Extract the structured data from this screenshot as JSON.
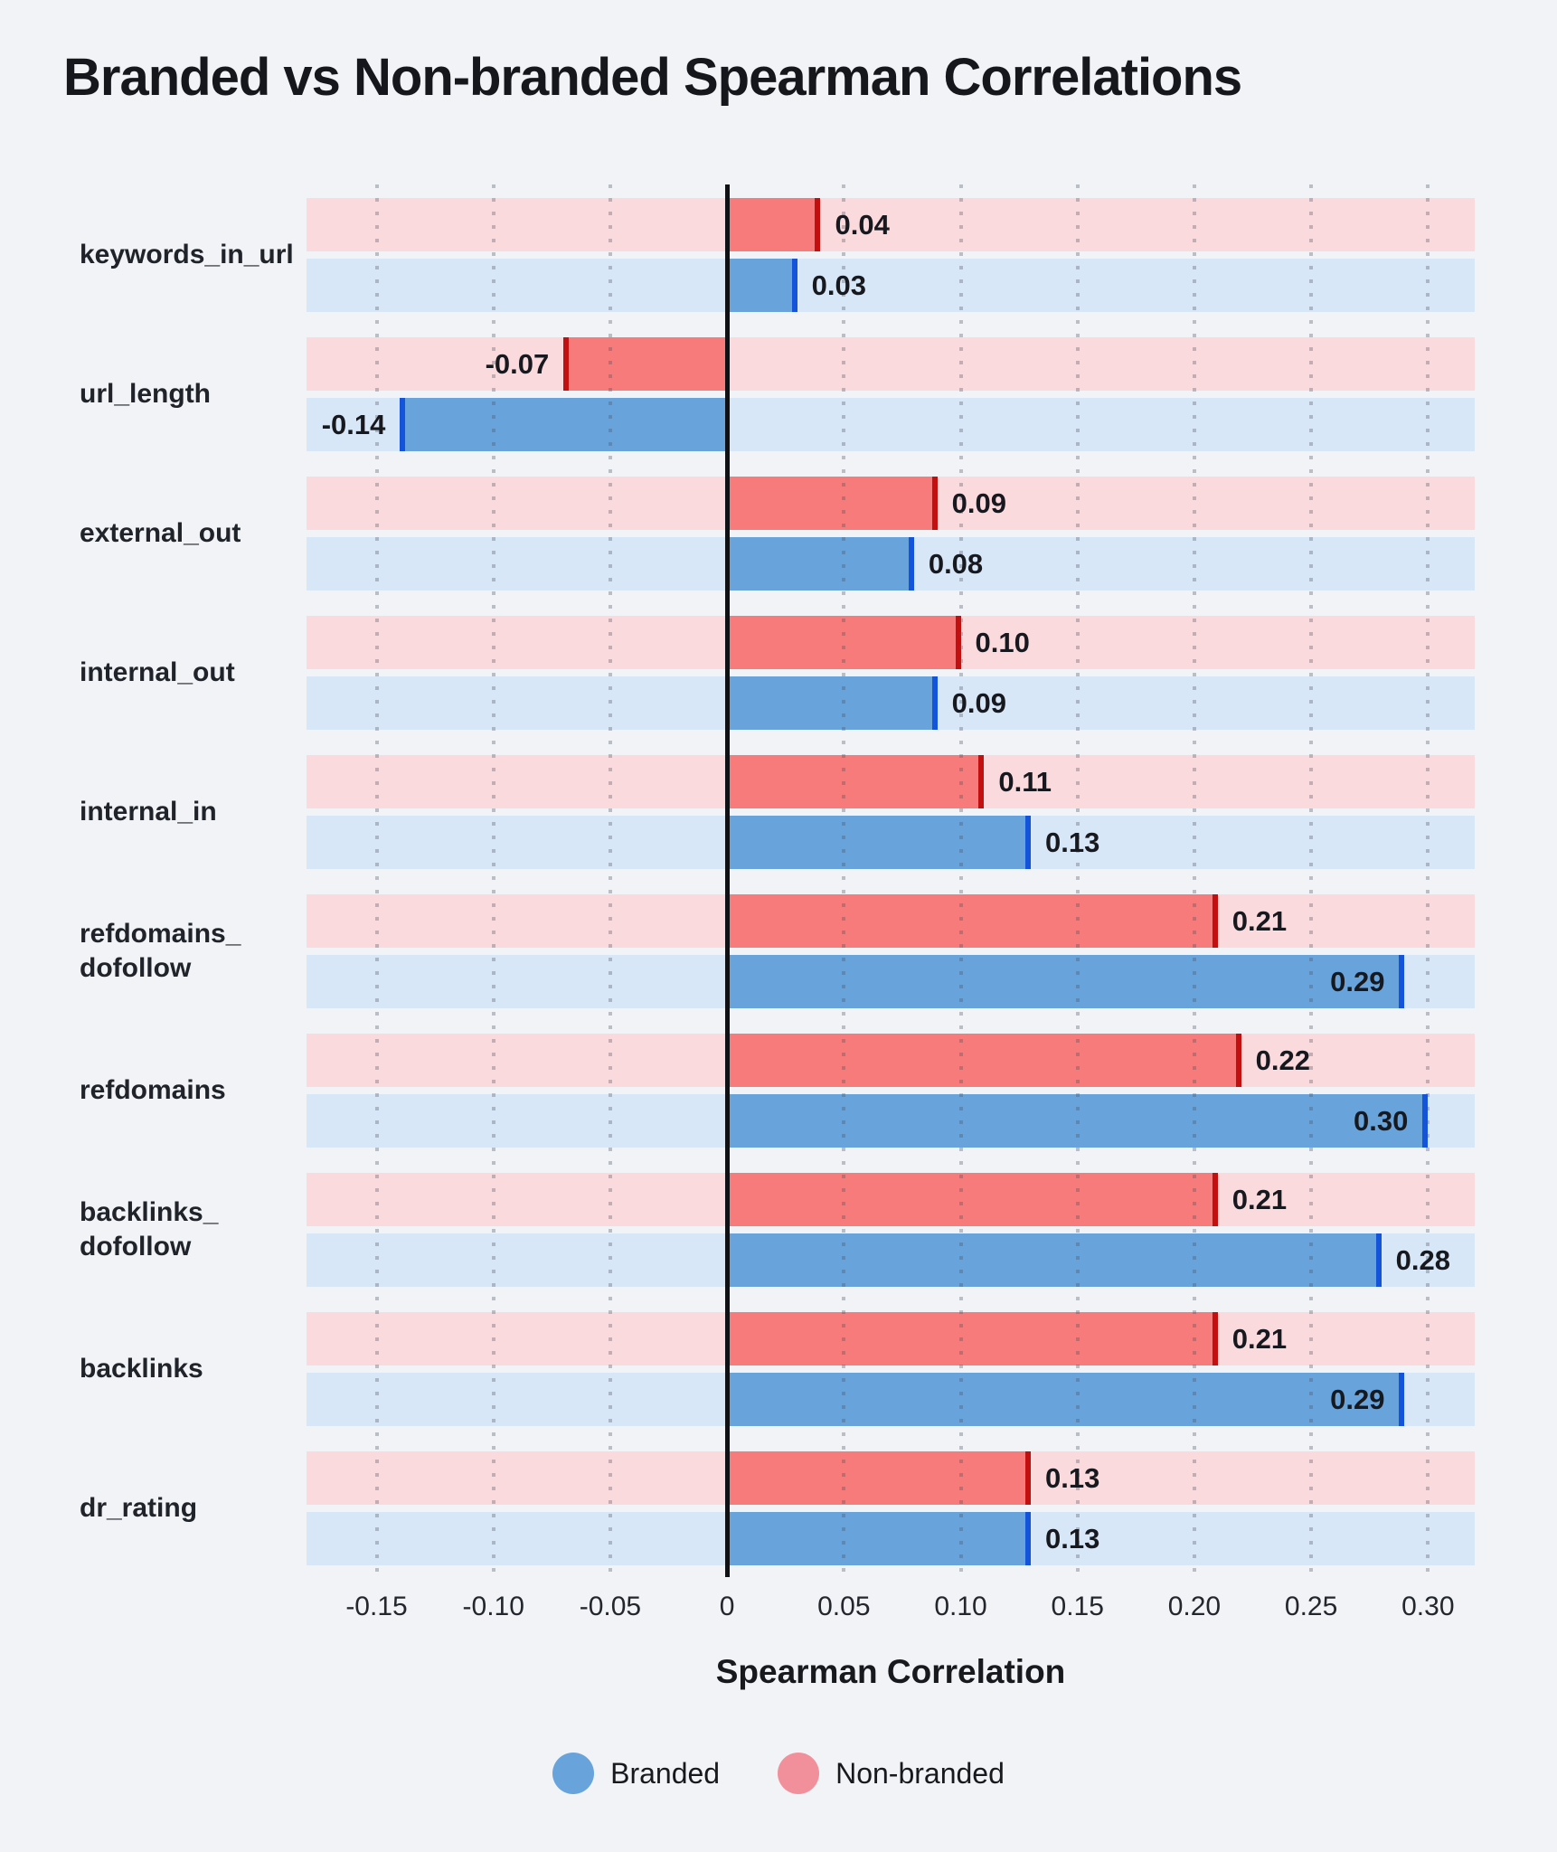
{
  "header": {
    "title": "Branded vs Non-branded Spearman Correlations"
  },
  "chart_data": {
    "type": "bar",
    "orientation": "horizontal",
    "title": "Branded vs Non-branded Spearman Correlations",
    "xlabel": "Spearman Correlation",
    "xlim": [
      -0.18,
      0.32
    ],
    "grid": "dotted-vertical",
    "zero_line": true,
    "categories": [
      "keywords_in_url",
      "url_length",
      "external_out",
      "internal_out",
      "internal_in",
      "refdomains_dofollow",
      "refdomains",
      "backlinks_dofollow",
      "backlinks",
      "dr_rating"
    ],
    "category_display_lines": [
      [
        "keywords_in_url"
      ],
      [
        "url_length"
      ],
      [
        "external_out"
      ],
      [
        "internal_out"
      ],
      [
        "internal_in"
      ],
      [
        "refdomains_",
        "dofollow"
      ],
      [
        "refdomains"
      ],
      [
        "backlinks_",
        "dofollow"
      ],
      [
        "backlinks"
      ],
      [
        "dr_rating"
      ]
    ],
    "series": [
      {
        "name": "Non-branded",
        "values": [
          0.04,
          -0.07,
          0.09,
          0.1,
          0.11,
          0.21,
          0.22,
          0.21,
          0.21,
          0.13
        ],
        "labels": [
          "0.04",
          "-0.07",
          "0.09",
          "0.10",
          "0.11",
          "0.21",
          "0.22",
          "0.21",
          "0.21",
          "0.13"
        ],
        "bar_color": "#f77b7b",
        "edge_color": "#c21010",
        "track_color": "#fbdade"
      },
      {
        "name": "Branded",
        "values": [
          0.03,
          -0.14,
          0.08,
          0.09,
          0.13,
          0.29,
          0.3,
          0.28,
          0.29,
          0.13
        ],
        "labels": [
          "0.03",
          "-0.14",
          "0.08",
          "0.09",
          "0.13",
          "0.29",
          "0.30",
          "0.28",
          "0.29",
          "0.13"
        ],
        "bar_color": "#68a4db",
        "edge_color": "#1454db",
        "track_color": "#d8e7f7"
      }
    ],
    "x_ticks": [
      {
        "value": -0.15,
        "label": "-0.15"
      },
      {
        "value": -0.1,
        "label": "-0.10"
      },
      {
        "value": -0.05,
        "label": "-0.05"
      },
      {
        "value": 0,
        "label": "0"
      },
      {
        "value": 0.05,
        "label": "0.05"
      },
      {
        "value": 0.1,
        "label": "0.10"
      },
      {
        "value": 0.15,
        "label": "0.15"
      },
      {
        "value": 0.2,
        "label": "0.20"
      },
      {
        "value": 0.25,
        "label": "0.25"
      },
      {
        "value": 0.3,
        "label": "0.30"
      }
    ],
    "legend": [
      {
        "label": "Branded",
        "color": "#68a4db"
      },
      {
        "label": "Non-branded",
        "color": "#f1909a"
      }
    ],
    "legend_position": "bottom-center"
  },
  "colors": {
    "background": "#f1f3f6",
    "text": "#17191e",
    "zero_line": "#101114",
    "gridline_dot": "rgba(72,78,92,0.32)"
  }
}
